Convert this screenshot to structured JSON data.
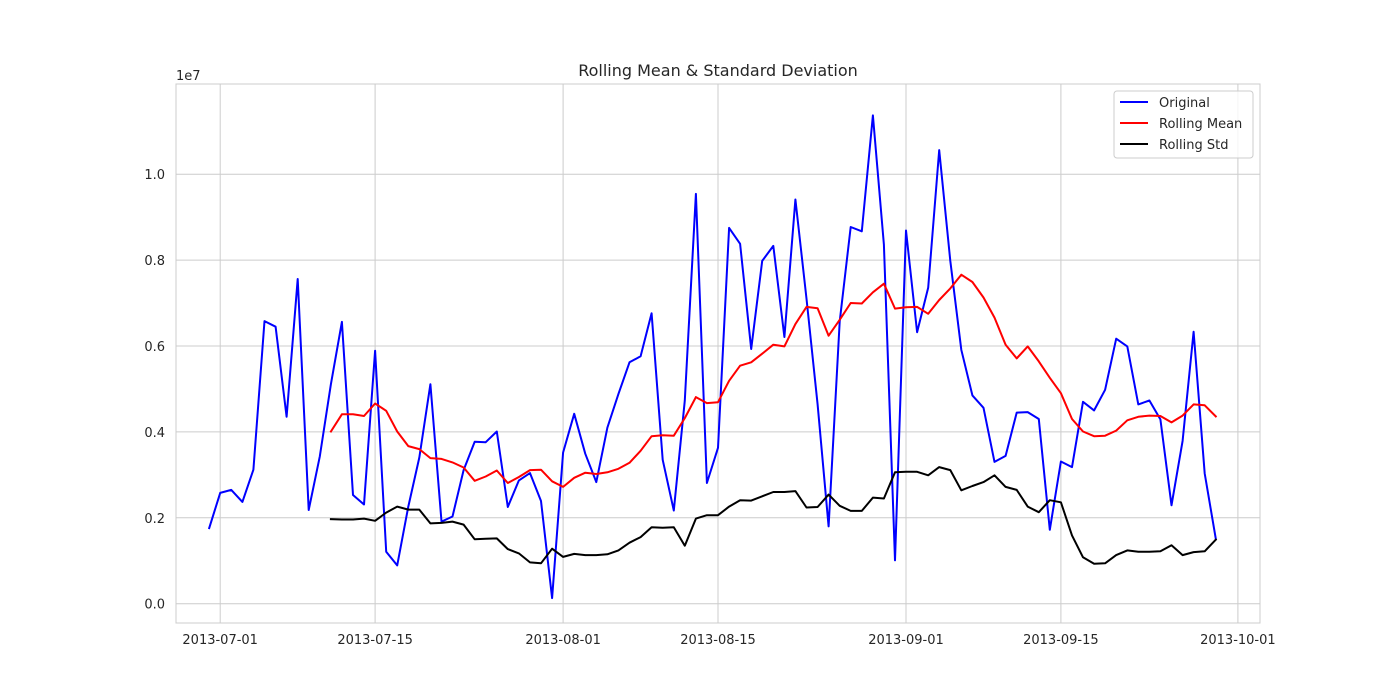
{
  "chart_data": {
    "type": "line",
    "title": "Rolling Mean & Standard Deviation",
    "xlabel": "",
    "ylabel": "",
    "y_offset_text": "1e7",
    "grid": true,
    "legend_position": "top-right",
    "x_axis_type": "date",
    "xlim": [
      "2013-06-27",
      "2013-10-03"
    ],
    "ylim": [
      -0.045,
      1.21
    ],
    "x_ticks": [
      "2013-07-01",
      "2013-07-15",
      "2013-08-01",
      "2013-08-15",
      "2013-09-01",
      "2013-09-15",
      "2013-10-01"
    ],
    "x_tick_labels": [
      "2013-07-01",
      "2013-07-15",
      "2013-08-01",
      "2013-08-15",
      "2013-09-01",
      "2013-09-15",
      "2013-10-01"
    ],
    "y_ticks": [
      0.0,
      0.2,
      0.4,
      0.6,
      0.8,
      1.0
    ],
    "y_tick_labels": [
      "0.0",
      "0.2",
      "0.4",
      "0.6",
      "0.8",
      "1.0"
    ],
    "x": [
      "2013-06-30",
      "2013-07-01",
      "2013-07-02",
      "2013-07-03",
      "2013-07-04",
      "2013-07-05",
      "2013-07-06",
      "2013-07-07",
      "2013-07-08",
      "2013-07-09",
      "2013-07-10",
      "2013-07-11",
      "2013-07-12",
      "2013-07-13",
      "2013-07-14",
      "2013-07-15",
      "2013-07-16",
      "2013-07-17",
      "2013-07-18",
      "2013-07-19",
      "2013-07-20",
      "2013-07-21",
      "2013-07-22",
      "2013-07-23",
      "2013-07-24",
      "2013-07-25",
      "2013-07-26",
      "2013-07-27",
      "2013-07-28",
      "2013-07-29",
      "2013-07-30",
      "2013-07-31",
      "2013-08-01",
      "2013-08-02",
      "2013-08-03",
      "2013-08-04",
      "2013-08-05",
      "2013-08-06",
      "2013-08-07",
      "2013-08-08",
      "2013-08-09",
      "2013-08-10",
      "2013-08-11",
      "2013-08-12",
      "2013-08-13",
      "2013-08-14",
      "2013-08-15",
      "2013-08-16",
      "2013-08-17",
      "2013-08-18",
      "2013-08-19",
      "2013-08-20",
      "2013-08-21",
      "2013-08-22",
      "2013-08-23",
      "2013-08-24",
      "2013-08-25",
      "2013-08-26",
      "2013-08-27",
      "2013-08-28",
      "2013-08-29",
      "2013-08-30",
      "2013-08-31",
      "2013-09-01",
      "2013-09-02",
      "2013-09-03",
      "2013-09-04",
      "2013-09-05",
      "2013-09-06",
      "2013-09-07",
      "2013-09-08",
      "2013-09-09",
      "2013-09-10",
      "2013-09-11",
      "2013-09-12",
      "2013-09-13",
      "2013-09-14",
      "2013-09-15",
      "2013-09-16",
      "2013-09-17",
      "2013-09-18",
      "2013-09-19",
      "2013-09-20",
      "2013-09-21",
      "2013-09-22",
      "2013-09-23",
      "2013-09-24",
      "2013-09-25",
      "2013-09-26",
      "2013-09-27",
      "2013-09-28",
      "2013-09-29",
      "2013-09-30"
    ],
    "series": [
      {
        "name": "Original",
        "color": "#0000ff",
        "values": [
          0.176,
          0.258,
          0.265,
          0.237,
          0.312,
          0.658,
          0.645,
          0.435,
          0.756,
          0.218,
          0.343,
          0.511,
          0.656,
          0.253,
          0.231,
          0.589,
          0.121,
          0.089,
          0.226,
          0.34,
          0.511,
          0.191,
          0.203,
          0.311,
          0.377,
          0.376,
          0.401,
          0.225,
          0.287,
          0.304,
          0.239,
          0.013,
          0.352,
          0.442,
          0.349,
          0.283,
          0.41,
          0.488,
          0.562,
          0.576,
          0.676,
          0.335,
          0.217,
          0.473,
          0.954,
          0.281,
          0.363,
          0.875,
          0.838,
          0.593,
          0.798,
          0.833,
          0.621,
          0.941,
          0.71,
          0.464,
          0.18,
          0.657,
          0.877,
          0.867,
          1.137,
          0.836,
          0.101,
          0.869,
          0.632,
          0.736,
          1.056,
          0.798,
          0.591,
          0.485,
          0.456,
          0.33,
          0.344,
          0.445,
          0.446,
          0.43,
          0.172,
          0.331,
          0.318,
          0.47,
          0.45,
          0.498,
          0.617,
          0.599,
          0.464,
          0.473,
          0.429,
          0.229,
          0.379,
          0.633,
          0.303,
          0.151,
          null
        ]
      },
      {
        "name": "Rolling Mean",
        "color": "#ff0000",
        "values": [
          null,
          null,
          null,
          null,
          null,
          null,
          null,
          null,
          null,
          null,
          null,
          0.401,
          0.441,
          0.441,
          0.437,
          0.466,
          0.449,
          0.401,
          0.367,
          0.36,
          0.339,
          0.337,
          0.329,
          0.317,
          0.286,
          0.296,
          0.31,
          0.281,
          0.295,
          0.311,
          0.312,
          0.285,
          0.272,
          0.293,
          0.305,
          0.302,
          0.306,
          0.314,
          0.328,
          0.356,
          0.39,
          0.392,
          0.391,
          0.432,
          0.481,
          0.467,
          0.469,
          0.519,
          0.554,
          0.562,
          0.582,
          0.603,
          0.599,
          0.651,
          0.691,
          0.688,
          0.624,
          0.661,
          0.7,
          0.699,
          0.725,
          0.745,
          0.687,
          0.69,
          0.691,
          0.675,
          0.707,
          0.734,
          0.766,
          0.749,
          0.713,
          0.666,
          0.603,
          0.571,
          0.599,
          0.564,
          0.526,
          0.49,
          0.43,
          0.401,
          0.39,
          0.391,
          0.403,
          0.427,
          0.435,
          0.438,
          0.437,
          0.422,
          0.438,
          0.464,
          0.462,
          0.436,
          null
        ]
      },
      {
        "name": "Rolling Std",
        "color": "#000000",
        "values": [
          null,
          null,
          null,
          null,
          null,
          null,
          null,
          null,
          null,
          null,
          null,
          0.197,
          0.196,
          0.196,
          0.198,
          0.193,
          0.212,
          0.226,
          0.219,
          0.219,
          0.187,
          0.188,
          0.191,
          0.184,
          0.15,
          0.151,
          0.152,
          0.127,
          0.117,
          0.096,
          0.094,
          0.128,
          0.109,
          0.116,
          0.113,
          0.113,
          0.115,
          0.124,
          0.142,
          0.155,
          0.178,
          0.177,
          0.178,
          0.135,
          0.198,
          0.206,
          0.206,
          0.226,
          0.241,
          0.24,
          0.25,
          0.26,
          0.26,
          0.262,
          0.224,
          0.225,
          0.254,
          0.228,
          0.216,
          0.216,
          0.247,
          0.245,
          0.306,
          0.307,
          0.307,
          0.299,
          0.318,
          0.311,
          0.264,
          0.274,
          0.283,
          0.299,
          0.272,
          0.265,
          0.226,
          0.213,
          0.241,
          0.236,
          0.159,
          0.108,
          0.093,
          0.094,
          0.113,
          0.124,
          0.121,
          0.121,
          0.122,
          0.136,
          0.113,
          0.12,
          0.122,
          0.149,
          null
        ]
      }
    ]
  }
}
